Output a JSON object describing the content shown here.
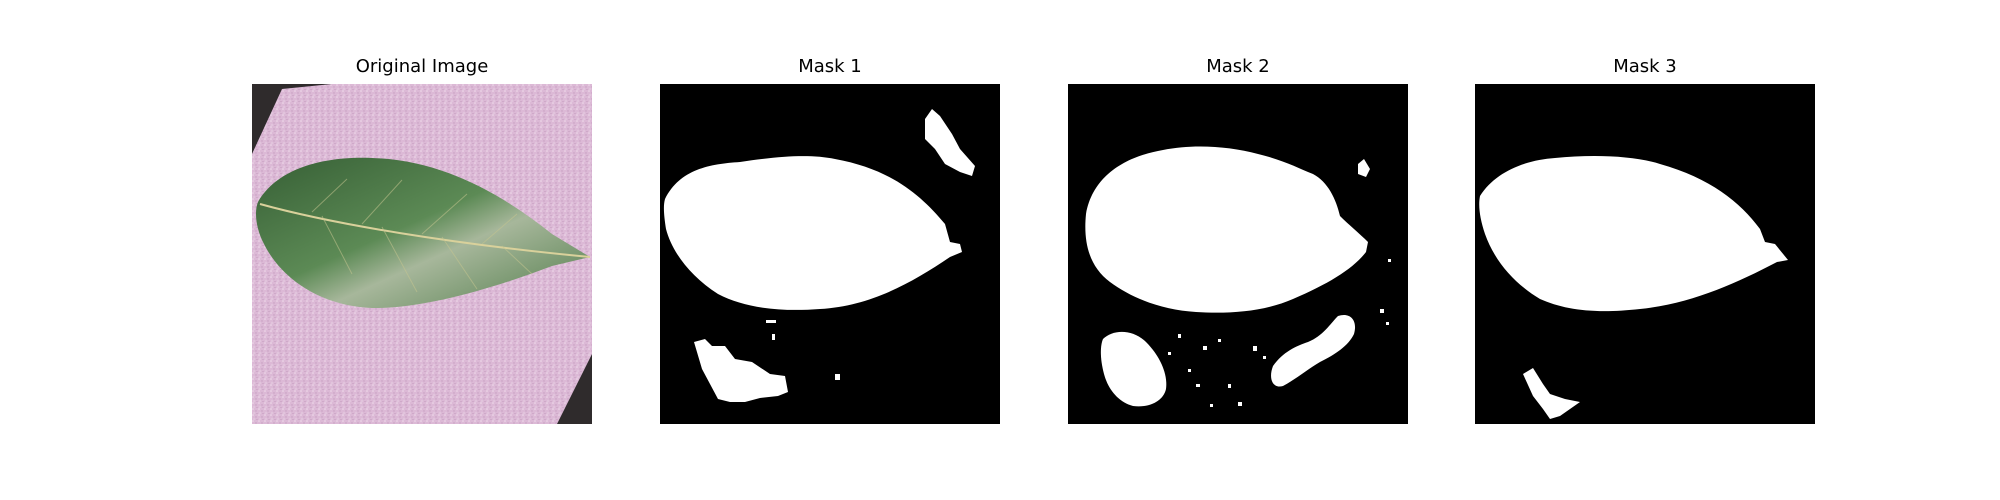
{
  "figure": {
    "panels": [
      {
        "title": "Original Image"
      },
      {
        "title": "Mask 1"
      },
      {
        "title": "Mask 2"
      },
      {
        "title": "Mask 3"
      }
    ],
    "colors": {
      "background": "#ffffff",
      "mask_background": "#000000",
      "mask_foreground": "#ffffff",
      "photo_surface": "#dcb9d6",
      "photo_corner": "#2f2b2c",
      "leaf_green": "#4f7b49",
      "leaf_dark": "#365f35",
      "leaf_light": "#a7b79b",
      "leaf_vein": "#d9d19b"
    }
  }
}
